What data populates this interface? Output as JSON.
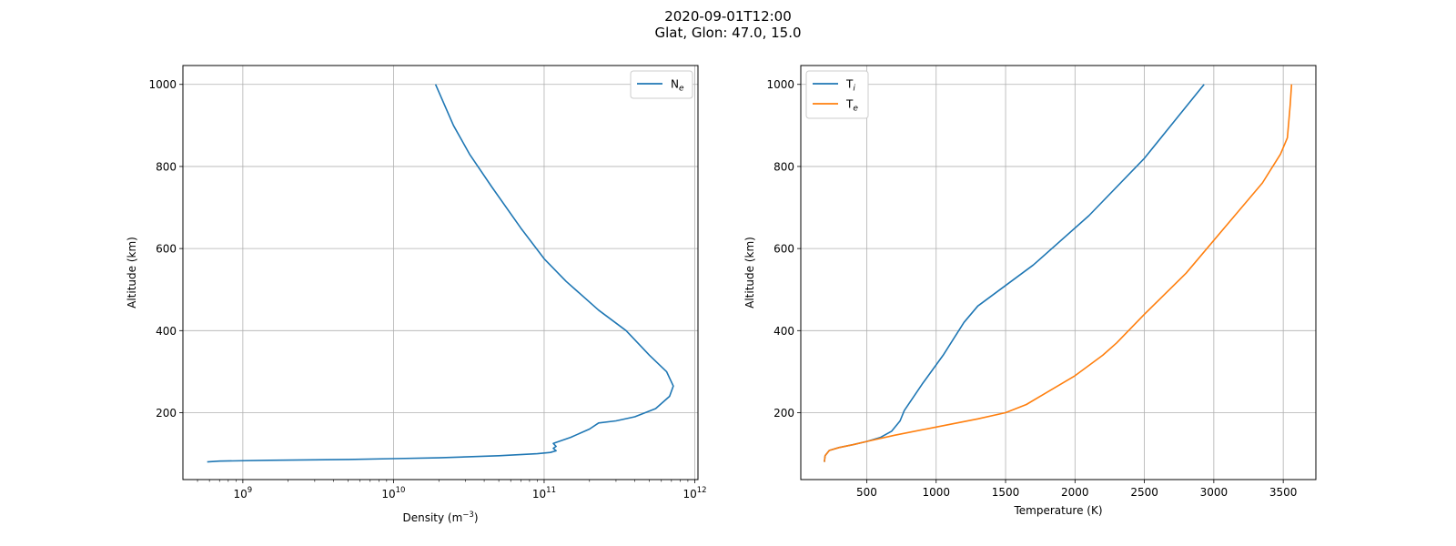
{
  "figure": {
    "title_line1": "2020-09-01T12:00",
    "title_line2": "Glat, Glon: 47.0, 15.0"
  },
  "colors": {
    "blue": "#1f77b4",
    "orange": "#ff7f0e",
    "grid": "#b0b0b0"
  },
  "chart_data": [
    {
      "type": "line",
      "xscale": "log",
      "xlabel_base": "Density (m",
      "xlabel_sup": "−3",
      "xlabel_tail": ")",
      "ylabel": "Altitude (km)",
      "xlim": [
        400000000.0,
        1050000000000.0
      ],
      "ylim": [
        37,
        1046
      ],
      "x_ticks": [
        {
          "value": 1000000000.0,
          "base": "10",
          "exp": "9"
        },
        {
          "value": 10000000000.0,
          "base": "10",
          "exp": "10"
        },
        {
          "value": 100000000000.0,
          "base": "10",
          "exp": "11"
        },
        {
          "value": 1000000000000.0,
          "base": "10",
          "exp": "12"
        }
      ],
      "y_ticks": [
        200,
        400,
        600,
        800,
        1000
      ],
      "grid": true,
      "legend_position": "upper right",
      "series": [
        {
          "name": "N",
          "name_sub": "e",
          "color": "#1f77b4",
          "points": [
            [
              580000000.0,
              80
            ],
            [
              700000000.0,
              82
            ],
            [
              1500000000.0,
              84
            ],
            [
              5000000000.0,
              86
            ],
            [
              10000000000.0,
              88
            ],
            [
              20000000000.0,
              90
            ],
            [
              50000000000.0,
              95
            ],
            [
              90000000000.0,
              100
            ],
            [
              110000000000.0,
              103
            ],
            [
              120000000000.0,
              107
            ],
            [
              115000000000.0,
              113
            ],
            [
              120000000000.0,
              118
            ],
            [
              115000000000.0,
              125
            ],
            [
              150000000000.0,
              140
            ],
            [
              200000000000.0,
              160
            ],
            [
              230000000000.0,
              175
            ],
            [
              300000000000.0,
              180
            ],
            [
              400000000000.0,
              190
            ],
            [
              550000000000.0,
              210
            ],
            [
              680000000000.0,
              240
            ],
            [
              720000000000.0,
              265
            ],
            [
              650000000000.0,
              300
            ],
            [
              500000000000.0,
              340
            ],
            [
              350000000000.0,
              400
            ],
            [
              230000000000.0,
              450
            ],
            [
              140000000000.0,
              520
            ],
            [
              100000000000.0,
              575
            ],
            [
              70000000000.0,
              650
            ],
            [
              45000000000.0,
              750
            ],
            [
              32000000000.0,
              830
            ],
            [
              25000000000.0,
              900
            ],
            [
              19000000000.0,
              1000
            ]
          ]
        }
      ]
    },
    {
      "type": "line",
      "xscale": "linear",
      "xlabel": "Temperature (K)",
      "ylabel": "Altitude (km)",
      "xlim": [
        25,
        3735
      ],
      "ylim": [
        37,
        1046
      ],
      "x_ticks": [
        500,
        1000,
        1500,
        2000,
        2500,
        3000,
        3500
      ],
      "y_ticks": [
        200,
        400,
        600,
        800,
        1000
      ],
      "grid": true,
      "legend_position": "upper left",
      "series": [
        {
          "name": "T",
          "name_sub": "i",
          "color": "#1f77b4",
          "points": [
            [
              195,
              80
            ],
            [
              200,
              95
            ],
            [
              230,
              108
            ],
            [
              300,
              115
            ],
            [
              400,
              122
            ],
            [
              500,
              130
            ],
            [
              600,
              140
            ],
            [
              680,
              155
            ],
            [
              740,
              180
            ],
            [
              770,
              205
            ],
            [
              900,
              270
            ],
            [
              1050,
              340
            ],
            [
              1200,
              420
            ],
            [
              1300,
              460
            ],
            [
              1700,
              560
            ],
            [
              2100,
              680
            ],
            [
              2500,
              820
            ],
            [
              2930,
              1000
            ]
          ]
        },
        {
          "name": "T",
          "name_sub": "e",
          "color": "#ff7f0e",
          "points": [
            [
              195,
              80
            ],
            [
              200,
              95
            ],
            [
              230,
              108
            ],
            [
              300,
              115
            ],
            [
              400,
              122
            ],
            [
              500,
              130
            ],
            [
              700,
              145
            ],
            [
              1000,
              165
            ],
            [
              1300,
              185
            ],
            [
              1500,
              200
            ],
            [
              1650,
              220
            ],
            [
              1800,
              250
            ],
            [
              2000,
              290
            ],
            [
              2200,
              340
            ],
            [
              2300,
              370
            ],
            [
              2500,
              440
            ],
            [
              2800,
              540
            ],
            [
              3100,
              660
            ],
            [
              3350,
              760
            ],
            [
              3480,
              830
            ],
            [
              3530,
              870
            ],
            [
              3550,
              950
            ],
            [
              3560,
              1000
            ]
          ]
        }
      ]
    }
  ]
}
